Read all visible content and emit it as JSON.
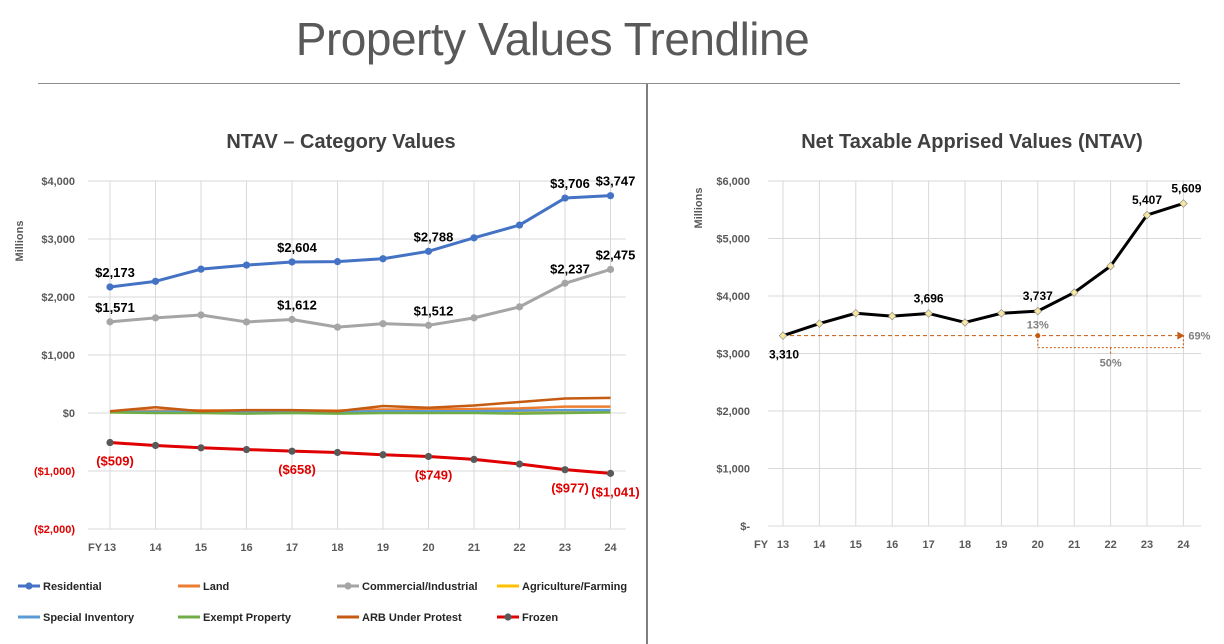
{
  "page": {
    "title": "Property Values Trendline"
  },
  "chart_data": [
    {
      "type": "line",
      "title": "NTAV – Category Values",
      "xlabel": "",
      "ylabel": "Millions",
      "x_prefix": "FY",
      "categories": [
        "13",
        "14",
        "15",
        "16",
        "17",
        "18",
        "19",
        "20",
        "21",
        "22",
        "23",
        "24"
      ],
      "ylim": [
        -2000,
        4000
      ],
      "yticks": [
        4000,
        3000,
        2000,
        1000,
        0,
        -1000,
        -2000
      ],
      "ytick_labels": [
        "$4,000",
        "$3,000",
        "$2,000",
        "$1,000",
        "$0",
        "($1,000)",
        "($2,000)"
      ],
      "grid": true,
      "legend": "bottom",
      "series": [
        {
          "name": "Residential",
          "color": "#4472c4",
          "marker": true,
          "values": [
            2173,
            2270,
            2480,
            2550,
            2604,
            2610,
            2660,
            2788,
            3020,
            3240,
            3706,
            3747
          ],
          "labels": {
            "0": "$2,173",
            "4": "$2,604",
            "7": "$2,788",
            "10": "$3,706",
            "11": "$3,747"
          }
        },
        {
          "name": "Land",
          "color": "#ed7d31",
          "marker": false,
          "values": [
            30,
            40,
            45,
            40,
            45,
            40,
            60,
            60,
            70,
            80,
            110,
            110
          ]
        },
        {
          "name": "Commercial/Industrial",
          "color": "#a5a5a5",
          "marker": true,
          "values": [
            1571,
            1640,
            1690,
            1570,
            1612,
            1480,
            1540,
            1512,
            1640,
            1830,
            2237,
            2475
          ],
          "labels": {
            "0": "$1,571",
            "4": "$1,612",
            "7": "$1,512",
            "10": "$2,237",
            "11": "$2,475"
          }
        },
        {
          "name": "Agriculture/Farming",
          "color": "#ffc000",
          "marker": false,
          "values": [
            10,
            10,
            10,
            10,
            10,
            10,
            10,
            10,
            10,
            10,
            10,
            10
          ]
        },
        {
          "name": "Special Inventory",
          "color": "#5b9bd5",
          "marker": false,
          "values": [
            20,
            20,
            30,
            20,
            20,
            20,
            30,
            30,
            30,
            40,
            50,
            50
          ]
        },
        {
          "name": "Exempt Property",
          "color": "#70ad47",
          "marker": false,
          "values": [
            10,
            0,
            0,
            -10,
            0,
            -10,
            0,
            0,
            0,
            -10,
            0,
            10
          ]
        },
        {
          "name": "ARB Under Protest",
          "color": "#c55a11",
          "marker": false,
          "values": [
            30,
            100,
            30,
            50,
            50,
            30,
            120,
            90,
            130,
            190,
            250,
            260
          ]
        },
        {
          "name": "Frozen",
          "color": "#e00000",
          "marker": true,
          "marker_color": "#595959",
          "values": [
            -509,
            -560,
            -600,
            -630,
            -658,
            -680,
            -720,
            -749,
            -800,
            -880,
            -977,
            -1041
          ],
          "labels": {
            "0": "($509)",
            "4": "($658)",
            "7": "($749)",
            "10": "($977)",
            "11": "($1,041)"
          }
        }
      ]
    },
    {
      "type": "line",
      "title": "Net Taxable Apprised Values (NTAV)",
      "xlabel": "",
      "ylabel": "Millions",
      "x_prefix": "FY",
      "categories": [
        "13",
        "14",
        "15",
        "16",
        "17",
        "18",
        "19",
        "20",
        "21",
        "22",
        "23",
        "24"
      ],
      "ylim": [
        0,
        6000
      ],
      "yticks": [
        6000,
        5000,
        4000,
        3000,
        2000,
        1000,
        0
      ],
      "ytick_labels": [
        "$6,000",
        "$5,000",
        "$4,000",
        "$3,000",
        "$2,000",
        "$1,000",
        "$-"
      ],
      "grid": true,
      "series": [
        {
          "name": "",
          "color": "#000000",
          "marker_color": "#f5e6a0",
          "values": [
            3310,
            3520,
            3700,
            3650,
            3696,
            3540,
            3700,
            3737,
            4060,
            4520,
            5407,
            5609
          ],
          "labels": {
            "0": "3,310",
            "4": "3,696",
            "7": "3,737",
            "10": "5,407",
            "11": "5,609"
          }
        }
      ],
      "annotations": {
        "from_fy20": "13%",
        "from_fy13": "69%",
        "from_fy20_bracket": "50%"
      }
    }
  ]
}
